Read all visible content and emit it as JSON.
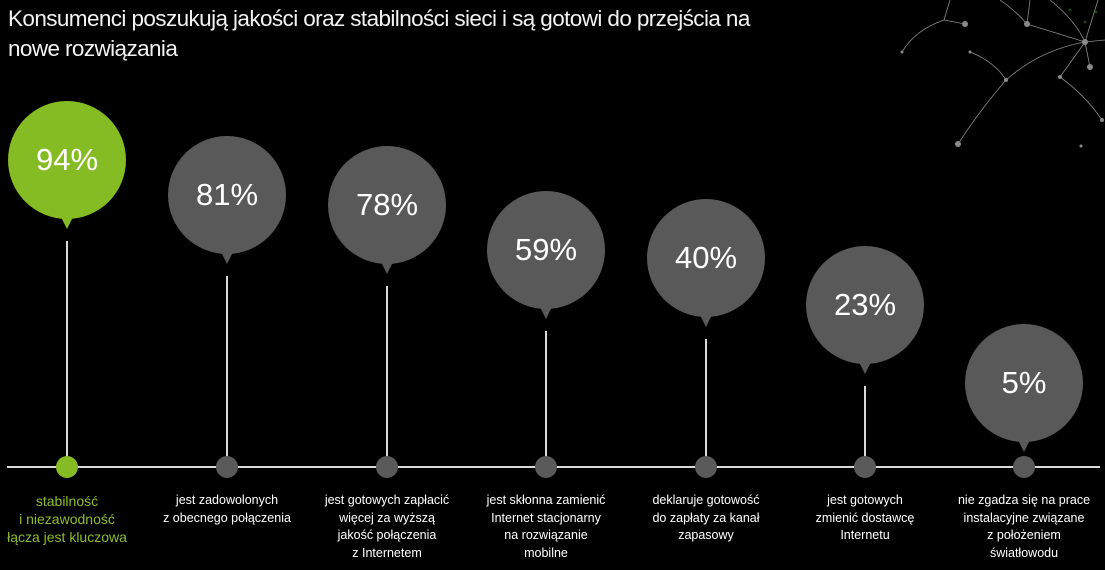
{
  "title": "Konsumenci poszukują jakości oraz stabilności sieci i są gotowi do przejścia na nowe rozwiązania",
  "colors": {
    "highlight": "#85bc23",
    "bubble": "#595959",
    "axis": "#d9d9d9",
    "background": "#000000",
    "highlight_text": "#8dbd2e"
  },
  "items": [
    {
      "value": "94%",
      "label_lines": [
        "stabilność",
        "i niezawodność",
        "łącza jest kluczowa"
      ],
      "highlight": true
    },
    {
      "value": "81%",
      "label_lines": [
        "jest zadowolonych",
        "z obecnego połączenia"
      ],
      "highlight": false
    },
    {
      "value": "78%",
      "label_lines": [
        "jest gotowych zapłacić",
        "więcej za wyższą",
        "jakość połączenia",
        "z Internetem"
      ],
      "highlight": false
    },
    {
      "value": "59%",
      "label_lines": [
        "jest skłonna zamienić",
        "Internet stacjonarny",
        "na rozwiązanie",
        "mobilne"
      ],
      "highlight": false
    },
    {
      "value": "40%",
      "label_lines": [
        "deklaruje gotowość",
        "do zapłaty za kanał",
        "zapasowy"
      ],
      "highlight": false
    },
    {
      "value": "23%",
      "label_lines": [
        "jest gotowych",
        "zmienić dostawcę",
        "Internetu"
      ],
      "highlight": false
    },
    {
      "value": "5%",
      "label_lines": [
        "nie zgadza się na prace",
        "instalacyjne związane",
        "z położeniem",
        "światłowodu"
      ],
      "highlight": false
    }
  ],
  "chart_data": {
    "type": "bar",
    "title": "Konsumenci poszukują jakości oraz stabilności sieci i są gotowi do przejścia na nowe rozwiązania",
    "categories": [
      "stabilność i niezawodność łącza jest kluczowa",
      "jest zadowolonych z obecnego połączenia",
      "jest gotowych zapłacić więcej za wyższą jakość połączenia z Internetem",
      "jest skłonna zamienić Internet stacjonarny na rozwiązanie mobilne",
      "deklaruje gotowość do zapłaty za kanał zapasowy",
      "jest gotowych zmienić dostawcę Internetu",
      "nie zgadza się na prace instalacyjne związane z położeniem światłowodu"
    ],
    "values": [
      94,
      81,
      78,
      59,
      40,
      23,
      5
    ],
    "unit": "%",
    "xlabel": "",
    "ylabel": "",
    "ylim": [
      0,
      100
    ],
    "grid": false,
    "legend": "none",
    "style": "lollipop / balloon markers on horizontal timeline"
  }
}
